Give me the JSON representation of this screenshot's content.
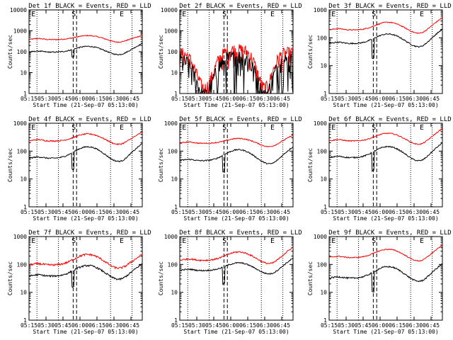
{
  "chart_data": {
    "type": "line",
    "x_ticks": [
      "05:15",
      "05:30",
      "05:45",
      "06:00",
      "06:15",
      "06:30",
      "06:45"
    ],
    "x_range": [
      0,
      100
    ],
    "x_tick_values": [
      0,
      15,
      30,
      45,
      60,
      75,
      90
    ],
    "xlabel": "Start Time (21-Sep-07 05:13:00)",
    "ylabel": "Counts/sec",
    "yscale": "log",
    "series_names": [
      "Events (black)",
      "LLD (red)"
    ],
    "marker_labels": {
      "E": "E",
      "S": "S"
    },
    "panels": [
      {
        "title": "Det 1f BLACK = Events, RED = LLD",
        "y_ticks": [
          "1",
          "10",
          "100",
          "1000",
          "10000"
        ],
        "ylim": [
          1,
          10000
        ],
        "red": {
          "base": 380,
          "bump": 1.55,
          "end": 1.6,
          "noise": 0.05
        },
        "black": {
          "base": 95,
          "bump": 1.9,
          "end": 2.6,
          "noise": 0.06,
          "dip": 55
        }
      },
      {
        "title": "Det 2f BLACK = Events, RED = LLD",
        "y_ticks": [
          "1",
          "10",
          "100",
          "1000",
          "10000"
        ],
        "ylim": [
          1,
          10000
        ],
        "red": {
          "base": 90,
          "bump": 1.6,
          "end": 1.3,
          "noise": 0.35,
          "deep": 1
        },
        "black": {
          "base": 40,
          "bump": 1.6,
          "end": 1.3,
          "noise": 0.45,
          "deep": 1,
          "dip": 20
        }
      },
      {
        "title": "Det 3f BLACK = Events, RED = LLD",
        "y_ticks": [
          "1",
          "10",
          "100",
          "1000"
        ],
        "ylim": [
          1,
          1000
        ],
        "red": {
          "base": 190,
          "bump": 1.9,
          "end": 2.8,
          "noise": 0.04
        },
        "black": {
          "base": 62,
          "bump": 2.2,
          "end": 3.3,
          "noise": 0.05,
          "dip": 18
        }
      },
      {
        "title": "Det 4f BLACK = Events, RED = LLD",
        "y_ticks": [
          "1",
          "10",
          "100",
          "1000"
        ],
        "ylim": [
          1,
          1000
        ],
        "red": {
          "base": 230,
          "bump": 1.8,
          "end": 2.1,
          "noise": 0.05
        },
        "black": {
          "base": 55,
          "bump": 2.6,
          "end": 3.4,
          "noise": 0.05,
          "dip": 22
        }
      },
      {
        "title": "Det 5f BLACK = Events, RED = LLD",
        "y_ticks": [
          "1",
          "10",
          "100",
          "1000"
        ],
        "ylim": [
          1,
          1000
        ],
        "red": {
          "base": 190,
          "bump": 1.5,
          "end": 2.0,
          "noise": 0.04
        },
        "black": {
          "base": 45,
          "bump": 2.5,
          "end": 3.2,
          "noise": 0.05,
          "dip": 18
        }
      },
      {
        "title": "Det 6f BLACK = Events, RED = LLD",
        "y_ticks": [
          "1",
          "10",
          "100",
          "1000"
        ],
        "ylim": [
          1,
          1000
        ],
        "red": {
          "base": 230,
          "bump": 1.9,
          "end": 2.8,
          "noise": 0.04
        },
        "black": {
          "base": 58,
          "bump": 2.5,
          "end": 3.4,
          "noise": 0.05,
          "dip": 20
        }
      },
      {
        "title": "Det 7f BLACK = Events, RED = LLD",
        "y_ticks": [
          "1",
          "10",
          "100",
          "1000"
        ],
        "ylim": [
          1,
          1000
        ],
        "red": {
          "base": 95,
          "bump": 2.4,
          "end": 2.4,
          "noise": 0.08
        },
        "black": {
          "base": 38,
          "bump": 2.4,
          "end": 2.8,
          "noise": 0.07,
          "dip": 16
        }
      },
      {
        "title": "Det 8f BLACK = Events, RED = LLD",
        "y_ticks": [
          "1",
          "10",
          "100",
          "1000"
        ],
        "ylim": [
          1,
          1000
        ],
        "red": {
          "base": 140,
          "bump": 2.0,
          "end": 3.0,
          "noise": 0.06
        },
        "black": {
          "base": 60,
          "bump": 1.9,
          "end": 2.8,
          "noise": 0.05,
          "dip": 20
        }
      },
      {
        "title": "Det 9f BLACK = Events, RED = LLD",
        "y_ticks": [
          "1",
          "10",
          "100",
          "1000"
        ],
        "ylim": [
          1,
          1000
        ],
        "red": {
          "base": 175,
          "bump": 2.0,
          "end": 2.8,
          "noise": 0.04
        },
        "black": {
          "base": 32,
          "bump": 2.6,
          "end": 3.3,
          "noise": 0.06,
          "dip": 10
        }
      }
    ],
    "colors": {
      "events": "#000000",
      "lld": "#ff0000",
      "axis": "#000000"
    }
  }
}
